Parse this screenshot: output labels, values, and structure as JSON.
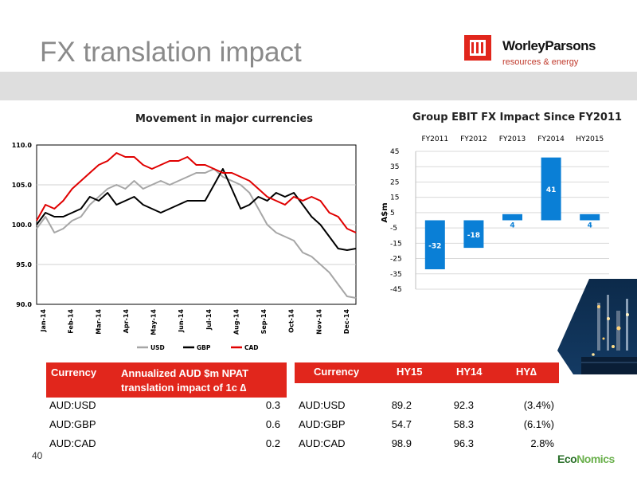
{
  "slide": {
    "title": "FX translation impact",
    "page_number": "40"
  },
  "logo": {
    "name": "WorleyParsons",
    "tagline": "resources & energy"
  },
  "footer_logo": {
    "part1": "Eco",
    "part2": "Nomics"
  },
  "colors": {
    "accent_red": "#e1261c",
    "bar_blue": "#0a7fd6",
    "usd": "#a6a6a6",
    "gbp": "#000000",
    "cad": "#e00000"
  },
  "chart_data": [
    {
      "type": "line",
      "title": "Movement in major currencies",
      "ylim": [
        90,
        110
      ],
      "y_ticks": [
        "110.0",
        "105.0",
        "100.0",
        "95.0",
        "90.0"
      ],
      "x_tick_labels": [
        "Jan-14",
        "Feb-14",
        "Mar-14",
        "Apr-14",
        "May-14",
        "Jun-14",
        "Jul-14",
        "Aug-14",
        "Sep-14",
        "Oct-14",
        "Nov-14",
        "Dec-14"
      ],
      "grid": true,
      "legend": "bottom",
      "series": [
        {
          "name": "USD",
          "color": "#a6a6a6",
          "values": [
            99.5,
            101.0,
            99.0,
            99.5,
            100.5,
            101.0,
            102.5,
            103.5,
            104.5,
            105.0,
            104.5,
            105.5,
            104.5,
            105.0,
            105.5,
            105.0,
            105.5,
            106.0,
            106.5,
            106.5,
            107.0,
            106.0,
            105.5,
            105.0,
            104.0,
            102.0,
            100.0,
            99.0,
            98.5,
            98.0,
            96.5,
            96.0,
            95.0,
            94.0,
            92.5,
            91.0,
            90.8
          ]
        },
        {
          "name": "GBP",
          "color": "#000000",
          "values": [
            100.0,
            101.5,
            101.0,
            101.0,
            101.5,
            102.0,
            103.5,
            103.0,
            104.0,
            102.5,
            103.0,
            103.5,
            102.5,
            102.0,
            101.5,
            102.0,
            102.5,
            103.0,
            103.0,
            103.0,
            105.0,
            107.0,
            104.5,
            102.0,
            102.5,
            103.5,
            103.0,
            104.0,
            103.5,
            104.0,
            102.5,
            101.0,
            100.0,
            98.5,
            97.0,
            96.8,
            97.0
          ]
        },
        {
          "name": "CAD",
          "color": "#e00000",
          "values": [
            100.5,
            102.5,
            102.0,
            103.0,
            104.5,
            105.5,
            106.5,
            107.5,
            108.0,
            109.0,
            108.5,
            108.5,
            107.5,
            107.0,
            107.5,
            108.0,
            108.0,
            108.5,
            107.5,
            107.5,
            107.0,
            106.5,
            106.5,
            106.0,
            105.5,
            104.5,
            103.5,
            103.0,
            102.5,
            103.5,
            103.0,
            103.5,
            103.0,
            101.5,
            101.0,
            99.5,
            99.0
          ]
        }
      ]
    },
    {
      "type": "bar",
      "title": "Group EBIT FX Impact Since FY2011",
      "categories": [
        "FY2011",
        "FY2012",
        "FY2013",
        "FY2014",
        "HY2015"
      ],
      "values": [
        -32,
        -18,
        4,
        41,
        4
      ],
      "data_labels": [
        "-32",
        "-18",
        "4",
        "41",
        "4"
      ],
      "ylabel": "A$m",
      "ylim": [
        -45,
        45
      ],
      "y_ticks": [
        "45",
        "35",
        "25",
        "15",
        "5",
        "-5",
        "-15",
        "-25",
        "-35",
        "-45"
      ],
      "grid": true
    }
  ],
  "table_left": {
    "headers": [
      "Currency",
      "Annualized AUD $m NPAT translation impact of 1c ∆"
    ],
    "rows": [
      [
        "AUD:USD",
        "0.3"
      ],
      [
        "AUD:GBP",
        "0.6"
      ],
      [
        "AUD:CAD",
        "0.2"
      ]
    ]
  },
  "table_right": {
    "headers": [
      "Currency",
      "HY15",
      "HY14",
      "HY∆"
    ],
    "rows": [
      [
        "AUD:USD",
        "89.2",
        "92.3",
        "(3.4%)"
      ],
      [
        "AUD:GBP",
        "54.7",
        "58.3",
        "(6.1%)"
      ],
      [
        "AUD:CAD",
        "98.9",
        "96.3",
        "2.8%"
      ]
    ]
  }
}
